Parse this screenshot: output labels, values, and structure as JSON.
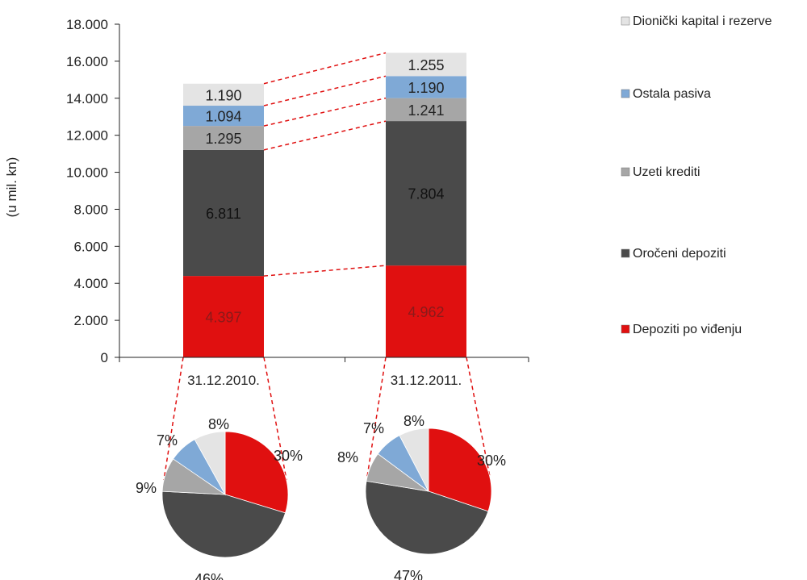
{
  "chart_data": {
    "type": "bar",
    "stacked": true,
    "ylabel": "(u mil. kn)",
    "ylim": [
      0,
      18000
    ],
    "yticks": [
      "0",
      "2.000",
      "4.000",
      "6.000",
      "8.000",
      "10.000",
      "12.000",
      "14.000",
      "16.000",
      "18.000"
    ],
    "categories": [
      "31.12.2010.",
      "31.12.2011."
    ],
    "series": [
      {
        "name": "Depoziti po viđenju",
        "values": [
          4397,
          4962
        ],
        "labels": [
          "4.397",
          "4.962"
        ],
        "color": "#e01010"
      },
      {
        "name": "Oročeni depoziti",
        "values": [
          6811,
          7804
        ],
        "labels": [
          "6.811",
          "7.804"
        ],
        "color": "#4a4a4a"
      },
      {
        "name": "Uzeti krediti",
        "values": [
          1295,
          1241
        ],
        "labels": [
          "1.295",
          "1.241"
        ],
        "color": "#a6a6a6"
      },
      {
        "name": "Ostala pasiva",
        "values": [
          1094,
          1190
        ],
        "labels": [
          "1.094",
          "1.190"
        ],
        "color": "#7fa9d6"
      },
      {
        "name": "Dionički kapital i rezerve",
        "values": [
          1190,
          1255
        ],
        "labels": [
          "1.190",
          "1.255"
        ],
        "color": "#e4e4e4"
      }
    ],
    "pies": [
      {
        "category": "31.12.2010.",
        "percent_labels": [
          "30%",
          "46%",
          "9%",
          "7%",
          "8%"
        ]
      },
      {
        "category": "31.12.2011.",
        "percent_labels": [
          "30%",
          "47%",
          "8%",
          "7%",
          "8%"
        ]
      }
    ],
    "legend_position": "right",
    "grid": false
  }
}
